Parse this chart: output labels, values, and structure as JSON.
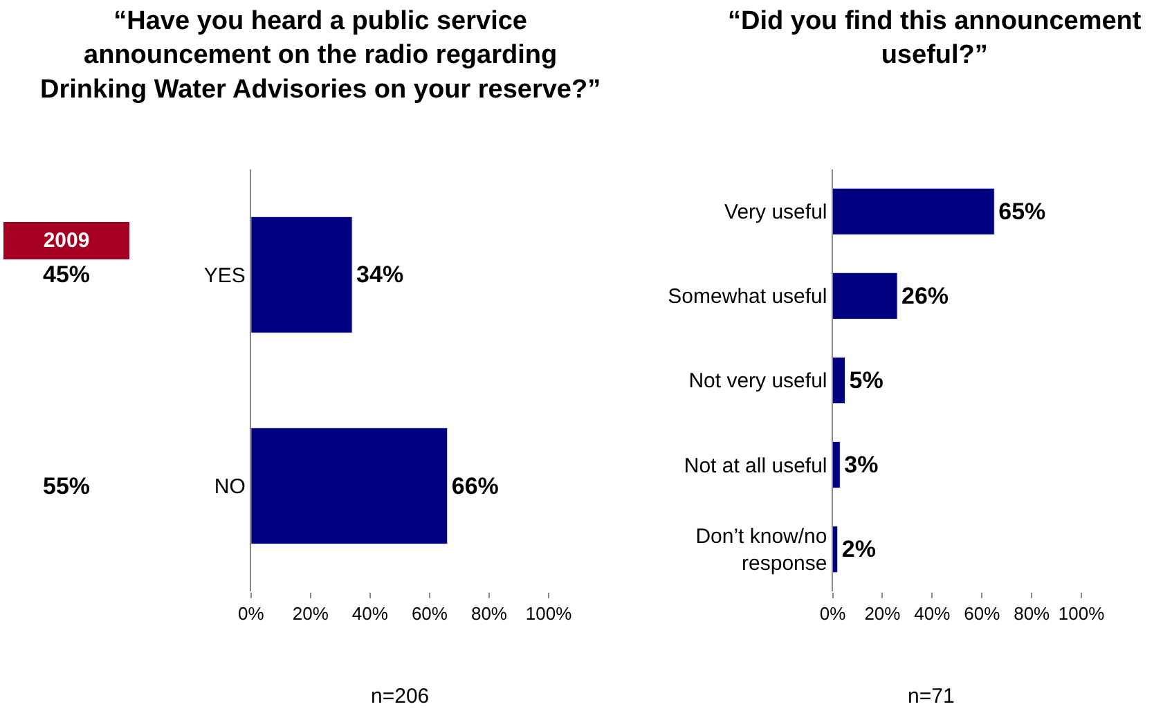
{
  "chart_data": [
    {
      "type": "bar",
      "orientation": "horizontal",
      "title": "“Have you heard a public service\nannouncement on the radio regarding\nDrinking Water Advisories on your reserve?”",
      "categories": [
        "YES",
        "NO"
      ],
      "values": [
        34,
        66
      ],
      "color": "#000080",
      "value_labels": [
        "34%",
        "66%"
      ],
      "xlim": [
        0,
        100
      ],
      "xticks": [
        {
          "value": 0,
          "label": "0%"
        },
        {
          "value": 20,
          "label": "20%"
        },
        {
          "value": 40,
          "label": "40%"
        },
        {
          "value": 60,
          "label": "60%"
        },
        {
          "value": 80,
          "label": "80%"
        },
        {
          "value": 100,
          "label": "100%"
        }
      ],
      "annotations": [
        "2009",
        "45%",
        "55%",
        "n=206"
      ]
    },
    {
      "type": "bar",
      "orientation": "horizontal",
      "title": "“Did you find this announcement\nuseful?”",
      "categories": [
        "Very useful",
        "Somewhat useful",
        "Not very useful",
        "Not at all useful",
        "Don’t know/no\nresponse"
      ],
      "values": [
        65,
        26,
        5,
        3,
        2
      ],
      "color": "#000080",
      "value_labels": [
        "65%",
        "26%",
        "5%",
        "3%",
        "2%"
      ],
      "xlim": [
        0,
        100
      ],
      "xticks": [
        {
          "value": 0,
          "label": "0%"
        },
        {
          "value": 20,
          "label": "20%"
        },
        {
          "value": 40,
          "label": "40%"
        },
        {
          "value": 60,
          "label": "60%"
        },
        {
          "value": 80,
          "label": "80%"
        },
        {
          "value": 100,
          "label": "100%"
        }
      ],
      "annotations": [
        "n=71"
      ]
    }
  ]
}
